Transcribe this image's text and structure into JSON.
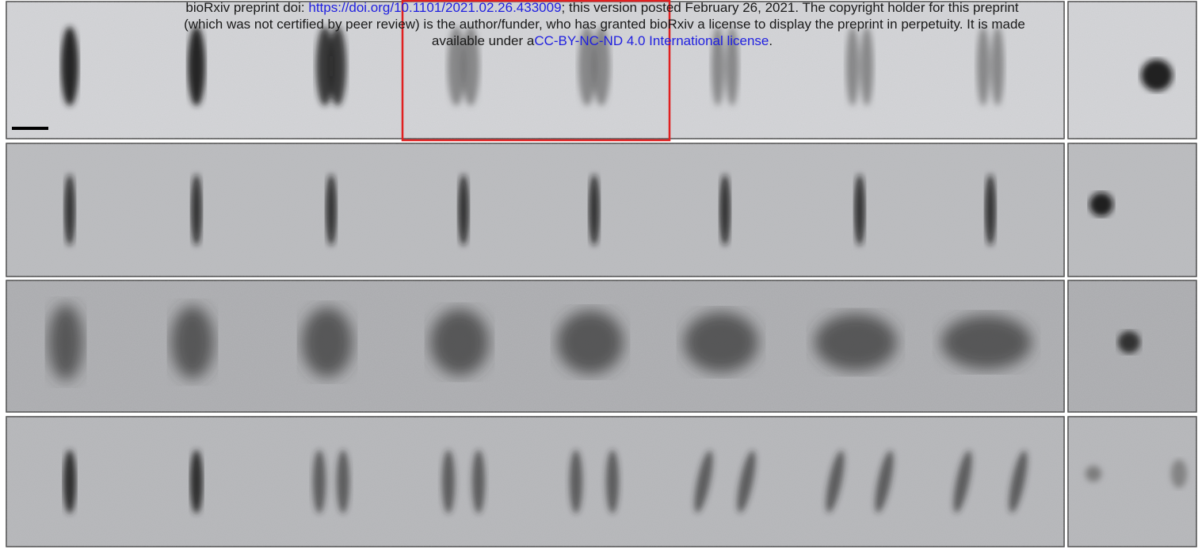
{
  "header": {
    "line1": {
      "prefix": "bioRxiv preprint doi: ",
      "doi_link": "https://doi.org/10.1101/2021.02.26.433009",
      "suffix": "; this version posted February 26, 2021. The copyright holder for this preprint"
    },
    "line2": "(which was not certified by peer review) is the author/funder, who has granted bioRxiv a license to display the preprint in perpetuity. It is made",
    "line3": {
      "prefix": "available under a",
      "license_link": "CC-BY-NC-ND 4.0 International license",
      "suffix": "."
    }
  }
}
